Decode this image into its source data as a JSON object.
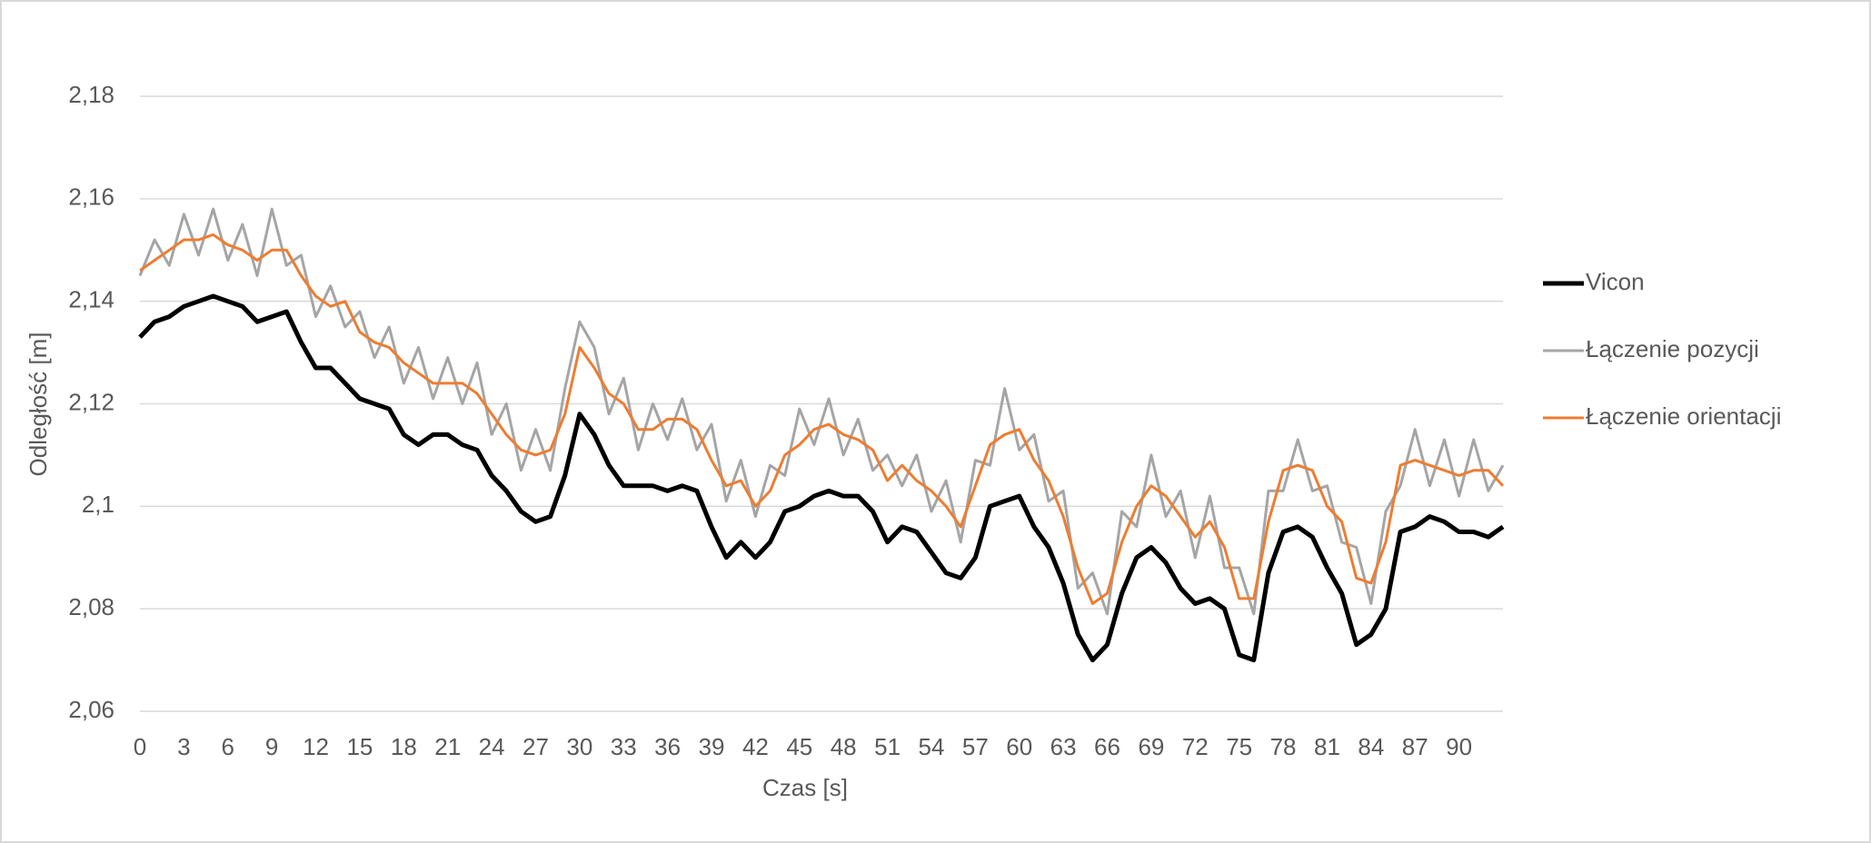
{
  "chart_data": {
    "type": "line",
    "x_label": "Czas [s]",
    "y_label": "Odległość [m]",
    "xlim": [
      0,
      93
    ],
    "ylim": [
      2.06,
      2.18
    ],
    "xticks": [
      0,
      3,
      6,
      9,
      12,
      15,
      18,
      21,
      24,
      27,
      30,
      33,
      36,
      39,
      42,
      45,
      48,
      51,
      54,
      57,
      60,
      63,
      66,
      69,
      72,
      75,
      78,
      81,
      84,
      87,
      90
    ],
    "yticks": [
      {
        "value": 2.06,
        "label": "2,06"
      },
      {
        "value": 2.08,
        "label": "2,08"
      },
      {
        "value": 2.1,
        "label": "2,1"
      },
      {
        "value": 2.12,
        "label": "2,12"
      },
      {
        "value": 2.14,
        "label": "2,14"
      },
      {
        "value": 2.16,
        "label": "2,16"
      },
      {
        "value": 2.18,
        "label": "2,18"
      }
    ],
    "grid": true,
    "legend": "right",
    "x": [
      0,
      1,
      2,
      3,
      4,
      5,
      6,
      7,
      8,
      9,
      10,
      11,
      12,
      13,
      14,
      15,
      16,
      17,
      18,
      19,
      20,
      21,
      22,
      23,
      24,
      25,
      26,
      27,
      28,
      29,
      30,
      31,
      32,
      33,
      34,
      35,
      36,
      37,
      38,
      39,
      40,
      41,
      42,
      43,
      44,
      45,
      46,
      47,
      48,
      49,
      50,
      51,
      52,
      53,
      54,
      55,
      56,
      57,
      58,
      59,
      60,
      61,
      62,
      63,
      64,
      65,
      66,
      67,
      68,
      69,
      70,
      71,
      72,
      73,
      74,
      75,
      76,
      77,
      78,
      79,
      80,
      81,
      82,
      83,
      84,
      85,
      86,
      87,
      88,
      89,
      90,
      91,
      92,
      93
    ],
    "series": [
      {
        "name": "Vicon",
        "color": "#000000",
        "values": [
          2.133,
          2.136,
          2.137,
          2.139,
          2.14,
          2.141,
          2.14,
          2.139,
          2.136,
          2.137,
          2.138,
          2.132,
          2.127,
          2.127,
          2.124,
          2.121,
          2.12,
          2.119,
          2.114,
          2.112,
          2.114,
          2.114,
          2.112,
          2.111,
          2.106,
          2.103,
          2.099,
          2.097,
          2.098,
          2.106,
          2.118,
          2.114,
          2.108,
          2.104,
          2.104,
          2.104,
          2.103,
          2.104,
          2.103,
          2.096,
          2.09,
          2.093,
          2.09,
          2.093,
          2.099,
          2.1,
          2.102,
          2.103,
          2.102,
          2.102,
          2.099,
          2.093,
          2.096,
          2.095,
          2.091,
          2.087,
          2.086,
          2.09,
          2.1,
          2.101,
          2.102,
          2.096,
          2.092,
          2.085,
          2.075,
          2.07,
          2.073,
          2.083,
          2.09,
          2.092,
          2.089,
          2.084,
          2.081,
          2.082,
          2.08,
          2.071,
          2.07,
          2.087,
          2.095,
          2.096,
          2.094,
          2.088,
          2.083,
          2.073,
          2.075,
          2.08,
          2.095,
          2.096,
          2.098,
          2.097,
          2.095,
          2.095,
          2.094,
          2.096
        ]
      },
      {
        "name": "Łączenie pozycji",
        "color": "#a5a5a5",
        "values": [
          2.145,
          2.152,
          2.147,
          2.157,
          2.149,
          2.158,
          2.148,
          2.155,
          2.145,
          2.158,
          2.147,
          2.149,
          2.137,
          2.143,
          2.135,
          2.138,
          2.129,
          2.135,
          2.124,
          2.131,
          2.121,
          2.129,
          2.12,
          2.128,
          2.114,
          2.12,
          2.107,
          2.115,
          2.107,
          2.123,
          2.136,
          2.131,
          2.118,
          2.125,
          2.111,
          2.12,
          2.113,
          2.121,
          2.111,
          2.116,
          2.101,
          2.109,
          2.098,
          2.108,
          2.106,
          2.119,
          2.112,
          2.121,
          2.11,
          2.117,
          2.107,
          2.11,
          2.104,
          2.11,
          2.099,
          2.105,
          2.093,
          2.109,
          2.108,
          2.123,
          2.111,
          2.114,
          2.101,
          2.103,
          2.084,
          2.087,
          2.079,
          2.099,
          2.096,
          2.11,
          2.098,
          2.103,
          2.09,
          2.102,
          2.088,
          2.088,
          2.079,
          2.103,
          2.103,
          2.113,
          2.103,
          2.104,
          2.093,
          2.092,
          2.081,
          2.099,
          2.104,
          2.115,
          2.104,
          2.113,
          2.102,
          2.113,
          2.103,
          2.108
        ]
      },
      {
        "name": "Łączenie orientacji",
        "color": "#ed7d31",
        "values": [
          2.146,
          2.148,
          2.15,
          2.152,
          2.152,
          2.153,
          2.151,
          2.15,
          2.148,
          2.15,
          2.15,
          2.145,
          2.141,
          2.139,
          2.14,
          2.134,
          2.132,
          2.131,
          2.128,
          2.126,
          2.124,
          2.124,
          2.124,
          2.122,
          2.118,
          2.114,
          2.111,
          2.11,
          2.111,
          2.118,
          2.131,
          2.127,
          2.122,
          2.12,
          2.115,
          2.115,
          2.117,
          2.117,
          2.115,
          2.109,
          2.104,
          2.105,
          2.1,
          2.103,
          2.11,
          2.112,
          2.115,
          2.116,
          2.114,
          2.113,
          2.111,
          2.105,
          2.108,
          2.105,
          2.103,
          2.1,
          2.096,
          2.104,
          2.112,
          2.114,
          2.115,
          2.109,
          2.105,
          2.098,
          2.088,
          2.081,
          2.083,
          2.093,
          2.1,
          2.104,
          2.102,
          2.098,
          2.094,
          2.097,
          2.092,
          2.082,
          2.082,
          2.097,
          2.107,
          2.108,
          2.107,
          2.1,
          2.097,
          2.086,
          2.085,
          2.093,
          2.108,
          2.109,
          2.108,
          2.107,
          2.106,
          2.107,
          2.107,
          2.104
        ]
      }
    ]
  }
}
